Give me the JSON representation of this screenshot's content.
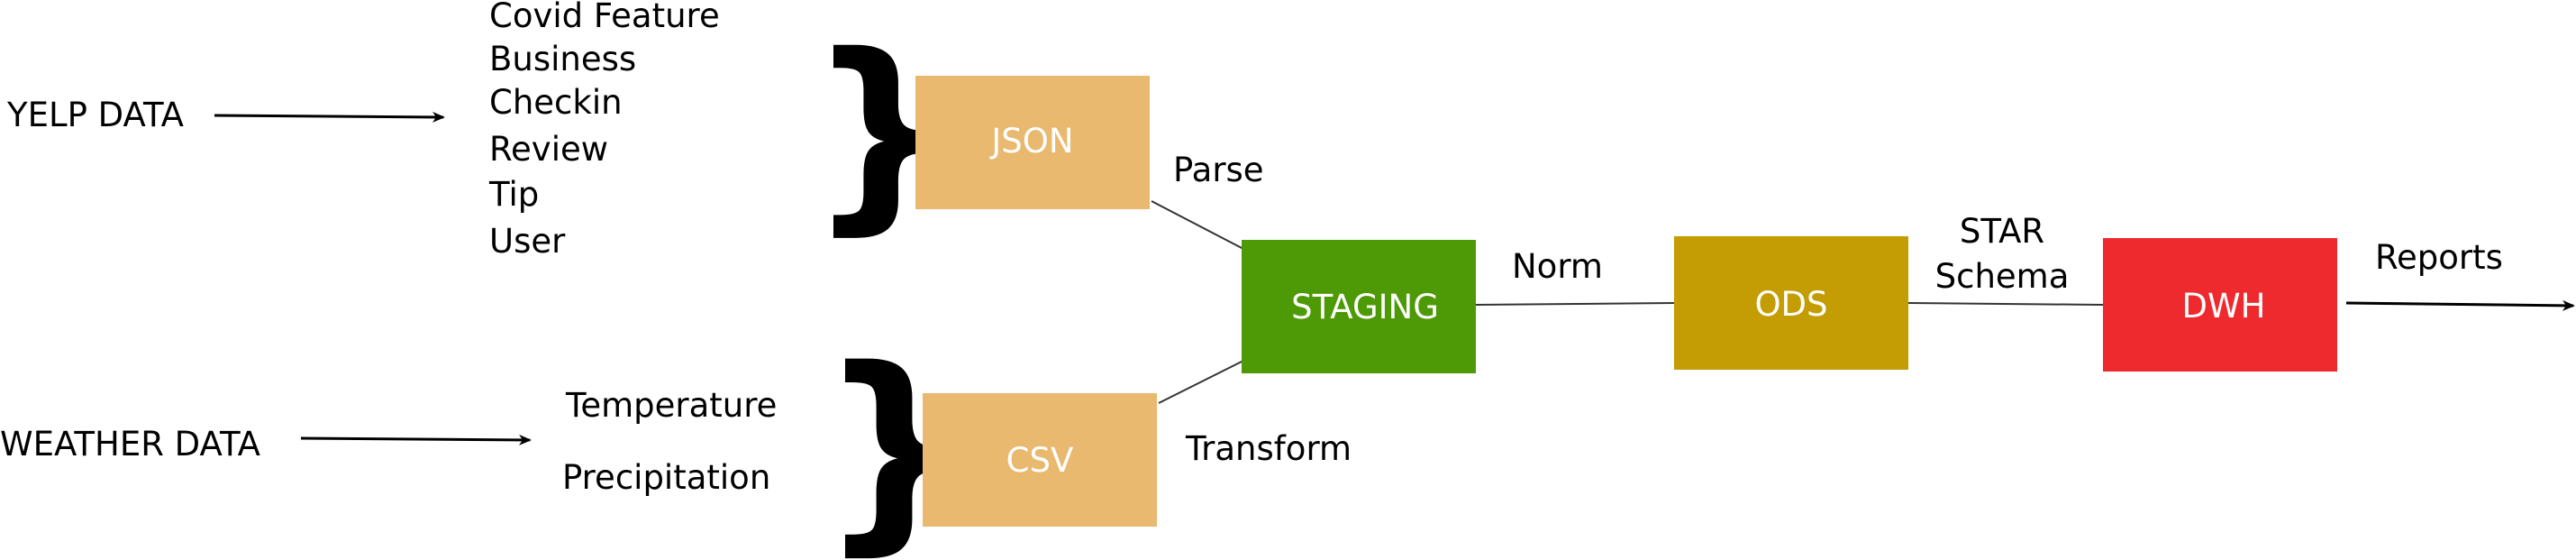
{
  "sources": {
    "yelp": "YELP DATA",
    "weather": "WEATHER DATA"
  },
  "yelp_items": [
    "Covid Feature",
    "Business",
    "Checkin",
    "Review",
    "Tip",
    "User"
  ],
  "weather_items": [
    "Temperature",
    "Precipitation"
  ],
  "boxes": {
    "json": "JSON",
    "csv": "CSV",
    "staging": "STAGING",
    "ods": "ODS",
    "dwh": "DWH"
  },
  "edges": {
    "parse": "Parse",
    "transform": "Transform",
    "norm": "Norm",
    "star_line1": "STAR",
    "star_line2": "Schema",
    "reports": "Reports"
  },
  "colors": {
    "json": "#E8B96E",
    "csv": "#E8B96E",
    "staging": "#4E9A06",
    "ods": "#C49C04",
    "dwh": "#EE2A2E"
  }
}
